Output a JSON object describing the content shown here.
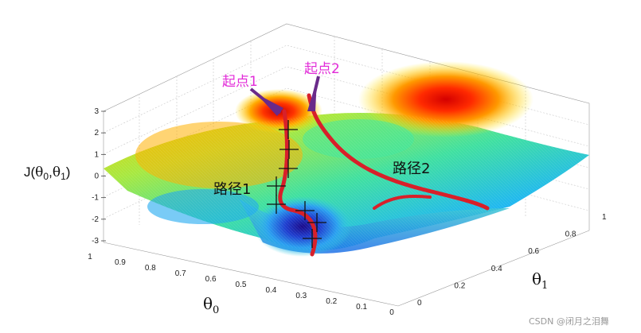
{
  "chart_data": {
    "type": "surface",
    "zlabel_parts": [
      "J(",
      "θ",
      "0",
      ",",
      "θ",
      "1",
      ")"
    ],
    "xlabel_main": "θ",
    "xlabel_sub": "0",
    "ylabel_main": "θ",
    "ylabel_sub": "1",
    "z_ticks": [
      "3",
      "2",
      "1",
      "0",
      "-1",
      "-2",
      "-3"
    ],
    "theta0_ticks": [
      "1",
      "0.9",
      "0.8",
      "0.7",
      "0.6",
      "0.5",
      "0.4",
      "0.3",
      "0.2",
      "0.1",
      "0"
    ],
    "theta1_ticks": [
      "0",
      "0.2",
      "0.4",
      "0.6",
      "0.8",
      "1"
    ],
    "zlim": [
      -3,
      3
    ],
    "grid": true,
    "colormap": "jet",
    "annotations": [
      {
        "text": "起点1",
        "color": "#e22bd8"
      },
      {
        "text": "起点2",
        "color": "#e22bd8"
      },
      {
        "text": "路径1",
        "color": "#111111"
      },
      {
        "text": "路径2",
        "color": "#111111"
      }
    ],
    "colors": {
      "path": "#d8202a",
      "arrow": "#6a2a8a",
      "label_magenta": "#e22bd8"
    }
  },
  "watermark": "CSDN @闭月之泪舞"
}
